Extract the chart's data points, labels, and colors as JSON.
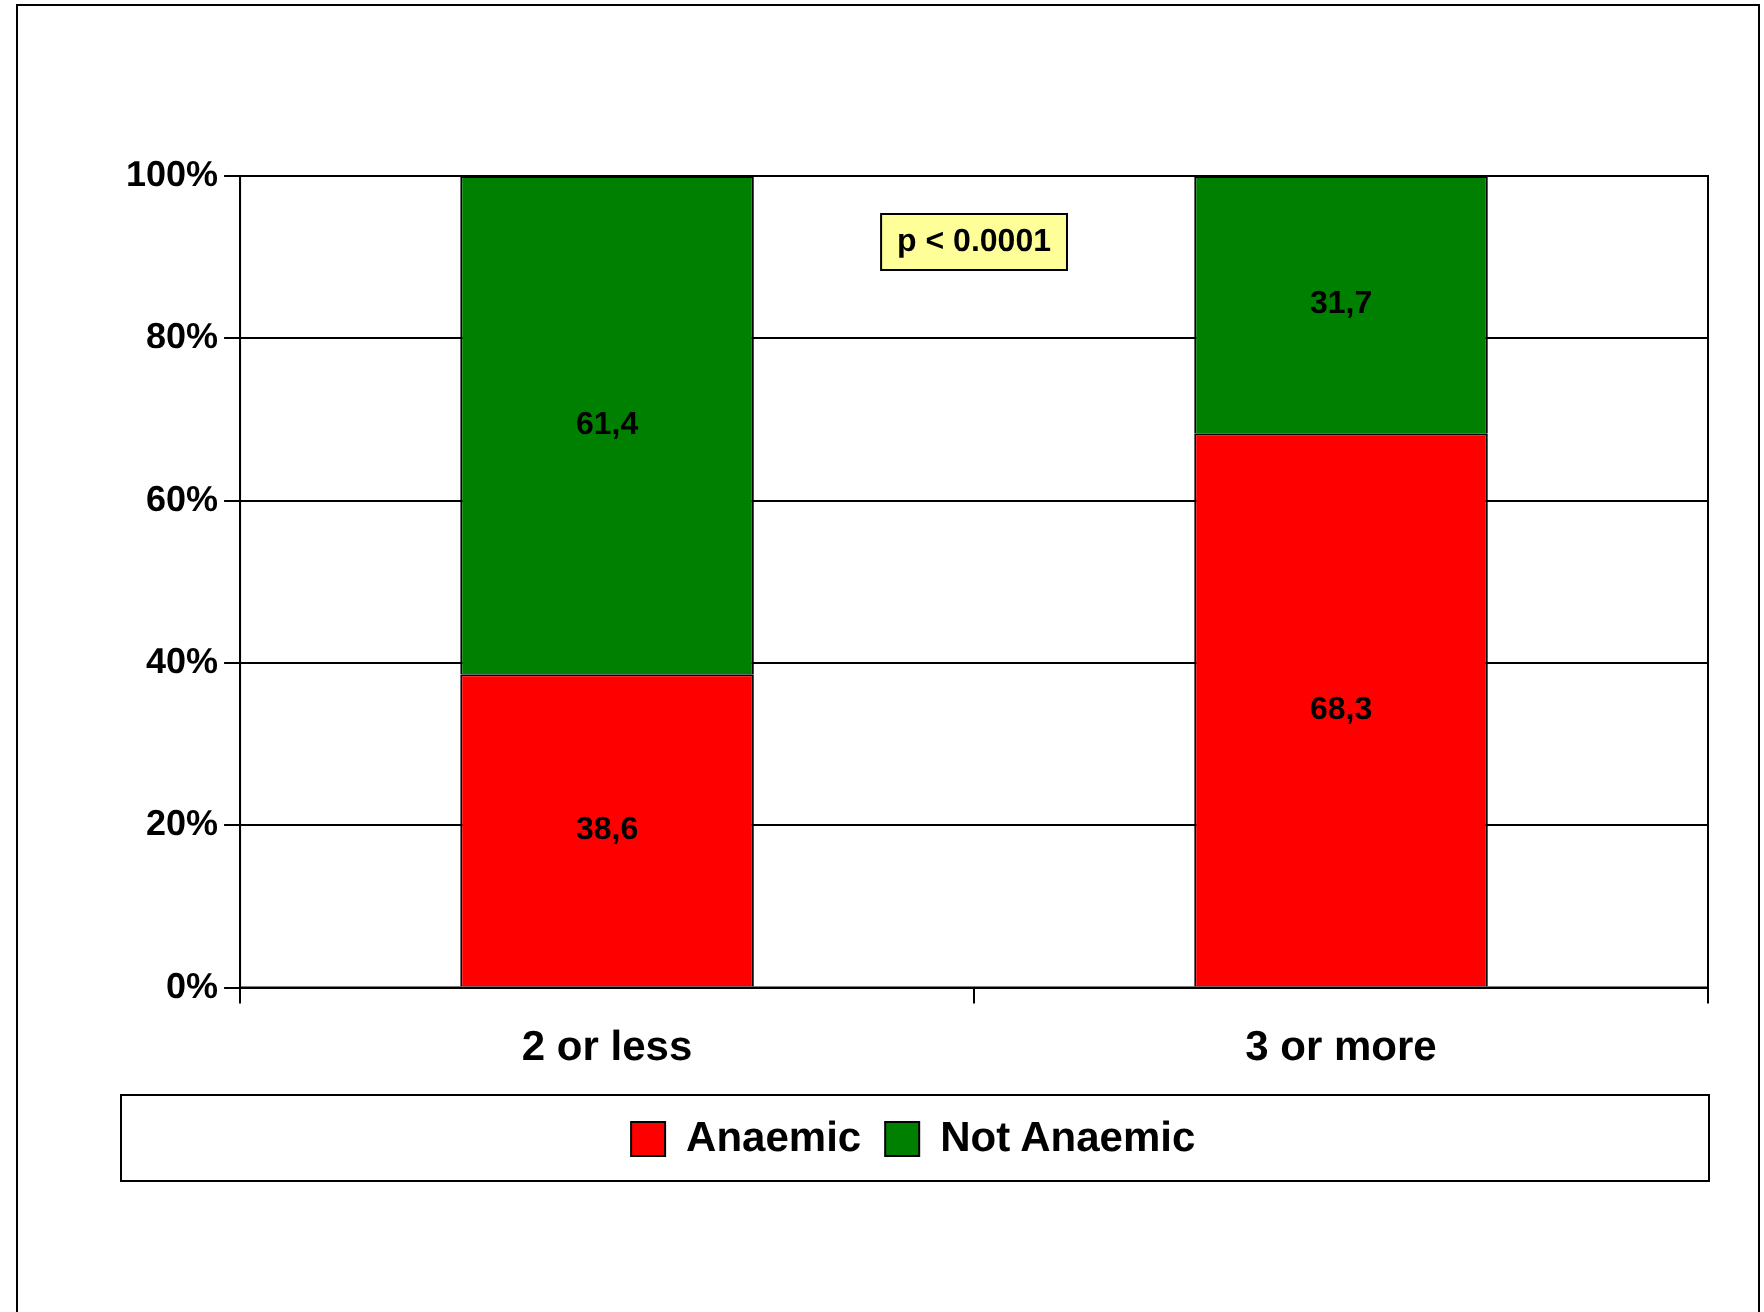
{
  "chart_data": {
    "type": "bar",
    "stacked": true,
    "categories": [
      "2 or less",
      "3 or more"
    ],
    "series": [
      {
        "name": "Anaemic",
        "color": "#ff0000",
        "values": [
          38.6,
          68.3
        ],
        "value_labels": [
          "38,6",
          "68,3"
        ]
      },
      {
        "name": "Not Anaemic",
        "color": "#008000",
        "values": [
          61.4,
          31.7
        ],
        "value_labels": [
          "61,4",
          "31,7"
        ]
      }
    ],
    "ylim": [
      0,
      100
    ],
    "yticks": [
      {
        "value": 0,
        "label": "0%"
      },
      {
        "value": 20,
        "label": "20%"
      },
      {
        "value": 40,
        "label": "40%"
      },
      {
        "value": 60,
        "label": "60%"
      },
      {
        "value": 80,
        "label": "80%"
      },
      {
        "value": 100,
        "label": "100%"
      }
    ],
    "grid": "y",
    "legend": "bottom",
    "annotations": [
      "p < 0.0001"
    ]
  }
}
